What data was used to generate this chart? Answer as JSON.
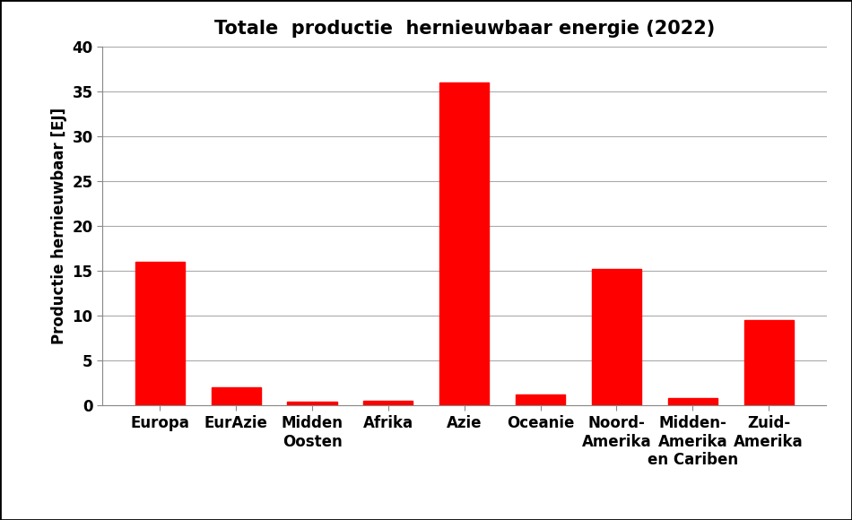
{
  "title": "Totale  productie  hernieuwbaar energie (2022)",
  "ylabel": "Productie hernieuwbaar [EJ]",
  "categories": [
    "Europa",
    "EurAzie",
    "Midden\nOosten",
    "Afrika",
    "Azie",
    "Oceanie",
    "Noord-\nAmerika",
    "Midden-\nAmerika\nen Cariben",
    "Zuid-\nAmerika"
  ],
  "values": [
    16.0,
    2.0,
    0.4,
    0.5,
    36.0,
    1.2,
    15.2,
    0.8,
    9.5
  ],
  "bar_color": "#ff0000",
  "ylim": [
    0,
    40
  ],
  "yticks": [
    0,
    5,
    10,
    15,
    20,
    25,
    30,
    35,
    40
  ],
  "background_color": "#ffffff",
  "title_fontsize": 15,
  "label_fontsize": 12,
  "tick_fontsize": 12,
  "grid_color": "#aaaaaa",
  "border_color": "#000000"
}
